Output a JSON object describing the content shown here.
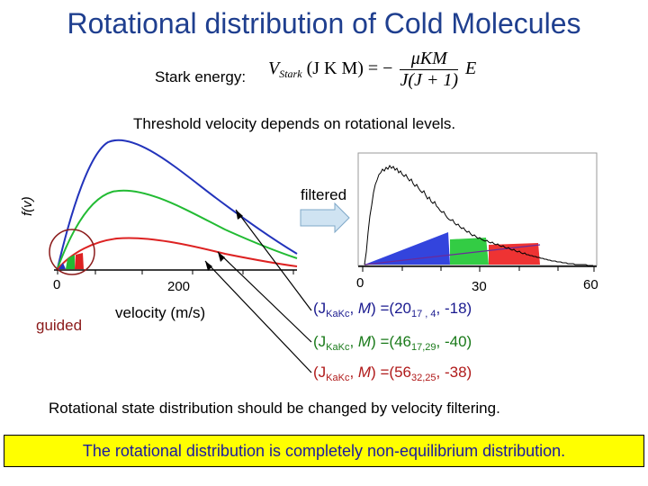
{
  "title": "Rotational distribution of Cold Molecules",
  "stark_label": "Stark energy:",
  "formula": {
    "lhs": "V",
    "lhs_sub": "Stark",
    "lhs_args": "(J K M) =",
    "minus": "−",
    "numerator": "μKM",
    "denominator": "J(J + 1)",
    "E": "E"
  },
  "threshold_text": "Threshold velocity depends on rotational levels.",
  "left_plot": {
    "ylabel": "f(v)",
    "tick_0": "0",
    "tick_200": "200",
    "guided_label": "guided",
    "xlabel": "velocity (m/s)"
  },
  "filtered_label": "filtered",
  "right_plot": {
    "tick_0": "0",
    "tick_30": "30",
    "tick_60": "60"
  },
  "states": [
    {
      "prefix": "(J",
      "sub": "KaKc",
      "mid": ", ",
      "M": "M",
      "eq": ") =(20",
      "sub2": "17 , 4",
      "rest": ", -18)"
    },
    {
      "prefix": "(J",
      "sub": "KaKc",
      "mid": ", ",
      "M": "M",
      "eq": ") =(46",
      "sub2": "17,29",
      "rest": ", -40)"
    },
    {
      "prefix": "(J",
      "sub": "KaKc",
      "mid": ", ",
      "M": "M",
      "eq": ") =(56",
      "sub2": "32,25",
      "rest": ", -38)"
    }
  ],
  "rot_state_text": "Rotational state distribution should be changed by velocity filtering.",
  "banner_text": "The rotational distribution is completely non-equilibrium  distribution.",
  "colors": {
    "title": "#1f3f8f",
    "blue": "#2233bb",
    "green": "#22bb33",
    "red": "#dd2222",
    "banner_bg": "#ffff00",
    "banner_text": "#1a1aa0"
  }
}
